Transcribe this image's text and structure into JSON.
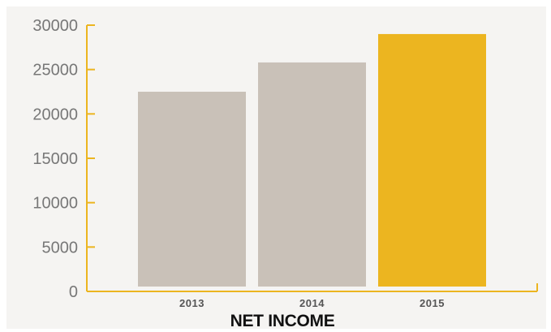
{
  "chart_data": {
    "type": "bar",
    "title": "NET INCOME",
    "xlabel": "NET INCOME",
    "ylabel": "",
    "categories": [
      "2013",
      "2014",
      "2015"
    ],
    "values": [
      22500,
      25800,
      29000
    ],
    "ylim": [
      0,
      30000
    ],
    "yticks": [
      "0",
      "5000",
      "10000",
      "15000",
      "20000",
      "25000",
      "30000"
    ],
    "grid": false,
    "legend": "none",
    "colors": {
      "bar_default": "#c9c1b8",
      "bar_highlight": "#ecb520",
      "axis": "#ecb520",
      "background": "#f5f4f2"
    },
    "highlight_index": 2
  }
}
